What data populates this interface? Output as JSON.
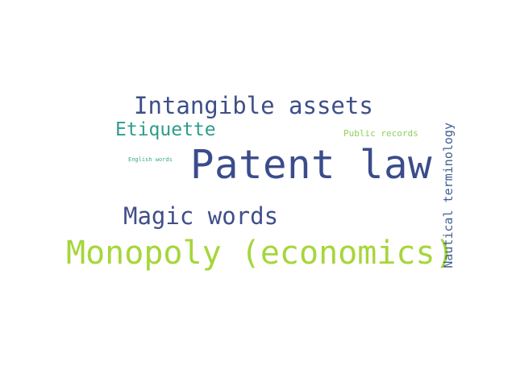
{
  "words": [
    {
      "key": "patent_law",
      "text": "Patent law",
      "color": "#3b4c8c"
    },
    {
      "key": "intangible_assets",
      "text": "Intangible assets",
      "color": "#3e4f87"
    },
    {
      "key": "etiquette",
      "text": "Etiquette",
      "color": "#2e9c8c"
    },
    {
      "key": "public_records",
      "text": "Public records",
      "color": "#8fd05a"
    },
    {
      "key": "english_words",
      "text": "English words",
      "color": "#3aa986"
    },
    {
      "key": "magic_words",
      "text": "Magic words",
      "color": "#404e8a"
    },
    {
      "key": "monopoly",
      "text": "Monopoly (economics)",
      "color": "#a6d63a"
    },
    {
      "key": "nautical_terminology",
      "text": "Nautical terminology",
      "color": "#3f5e8c"
    }
  ]
}
